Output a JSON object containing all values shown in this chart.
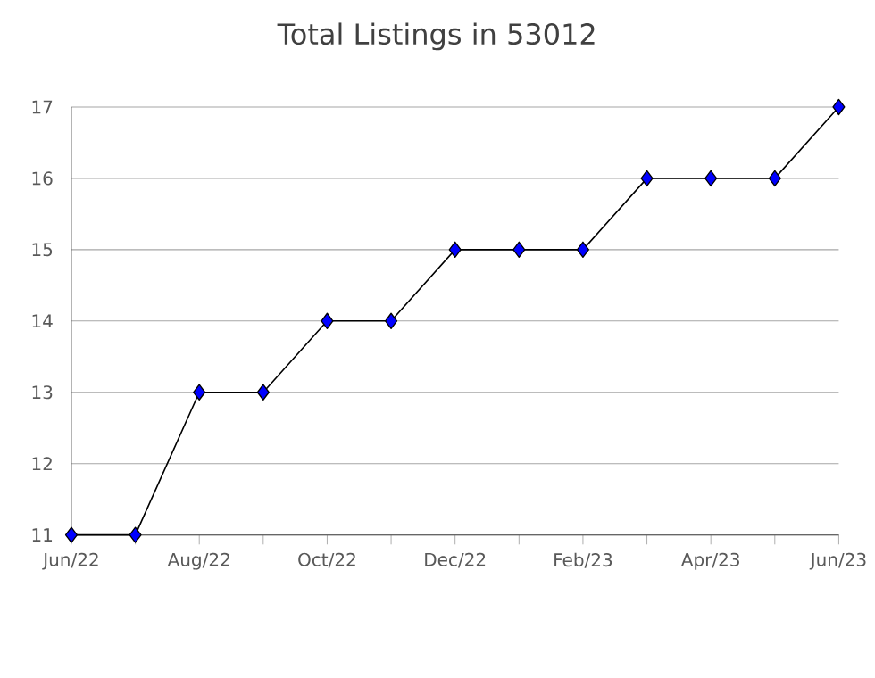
{
  "chart_data": {
    "type": "line",
    "title": "Total Listings in 53012",
    "categories": [
      "Jun/22",
      null,
      "Aug/22",
      null,
      "Oct/22",
      null,
      "Dec/22",
      null,
      "Feb/23",
      null,
      "Apr/23",
      null,
      "Jun/23"
    ],
    "series": [
      {
        "color": "#0000ff",
        "values": [
          11,
          11,
          13,
          13,
          14,
          14,
          15,
          15,
          15,
          16,
          16,
          16,
          17
        ]
      }
    ],
    "ylim": [
      11,
      17
    ],
    "yticks": [
      11,
      12,
      13,
      14,
      15,
      16,
      17
    ],
    "grid": "y",
    "marker": "diamond",
    "line_style": "solid"
  }
}
